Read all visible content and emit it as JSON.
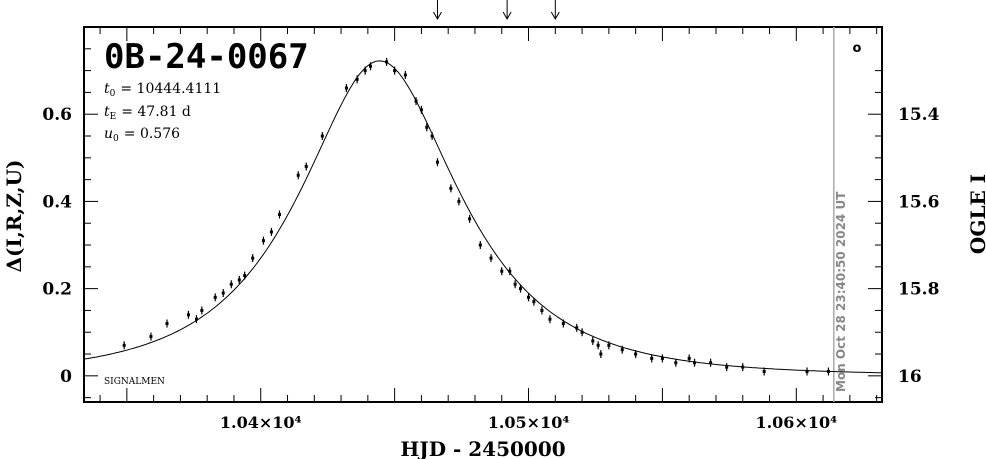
{
  "chart_data": {
    "type": "scatter",
    "event_name": "0B-24-0067",
    "params": {
      "t0_label": "t",
      "t0_sub": "0",
      "t0_value": "= 10444.4111",
      "tE_label": "t",
      "tE_sub": "E",
      "tE_value": "= 47.81 d",
      "u0_label": "u",
      "u0_sub": "0",
      "u0_value": "= 0.576"
    },
    "xlabel": "HJD - 2450000",
    "ylabel_left": "Δ(I,R,Z,U)",
    "ylabel_right": "OGLE I",
    "xlim": [
      10334,
      10632
    ],
    "ylim": [
      -0.06,
      0.8
    ],
    "x_ticks": [
      {
        "value": 10400,
        "label": "1.04×10⁴"
      },
      {
        "value": 10500,
        "label": "1.05×10⁴"
      },
      {
        "value": 10600,
        "label": "1.06×10⁴"
      }
    ],
    "y_ticks_left": [
      {
        "value": 0,
        "label": "0"
      },
      {
        "value": 0.2,
        "label": "0.2"
      },
      {
        "value": 0.4,
        "label": "0.4"
      },
      {
        "value": 0.6,
        "label": "0.6"
      }
    ],
    "y_ticks_right": [
      {
        "value": 15.4,
        "label": "15.4"
      },
      {
        "value": 15.6,
        "label": "15.6"
      },
      {
        "value": 15.8,
        "label": "15.8"
      },
      {
        "value": 16.0,
        "label": "16"
      }
    ],
    "timestamp_label": "Mon Oct 28 23:40:50 2024 UT",
    "timestamp_x": 10614,
    "signalmen_label": "SIGNALMEN",
    "marker_label": "o",
    "arrows_x": [
      10466,
      10492,
      10510
    ],
    "model_curve": {
      "t0": 10444.4111,
      "tE": 47.81,
      "u0": 0.576,
      "base": 0.0
    },
    "series": [
      {
        "points": [
          {
            "x": 10349,
            "y": 0.07
          },
          {
            "x": 10359,
            "y": 0.09
          },
          {
            "x": 10365,
            "y": 0.12
          },
          {
            "x": 10373,
            "y": 0.14
          },
          {
            "x": 10376,
            "y": 0.13
          },
          {
            "x": 10378,
            "y": 0.15
          },
          {
            "x": 10383,
            "y": 0.18
          },
          {
            "x": 10386,
            "y": 0.19
          },
          {
            "x": 10389,
            "y": 0.21
          },
          {
            "x": 10392,
            "y": 0.22
          },
          {
            "x": 10394,
            "y": 0.23
          },
          {
            "x": 10397,
            "y": 0.27
          },
          {
            "x": 10401,
            "y": 0.31
          },
          {
            "x": 10404,
            "y": 0.33
          },
          {
            "x": 10407,
            "y": 0.37
          },
          {
            "x": 10414,
            "y": 0.46
          },
          {
            "x": 10417,
            "y": 0.48
          },
          {
            "x": 10423,
            "y": 0.55
          },
          {
            "x": 10432,
            "y": 0.66
          },
          {
            "x": 10436,
            "y": 0.68
          },
          {
            "x": 10439,
            "y": 0.7
          },
          {
            "x": 10441,
            "y": 0.71
          },
          {
            "x": 10447,
            "y": 0.72
          },
          {
            "x": 10450,
            "y": 0.7
          },
          {
            "x": 10454,
            "y": 0.69
          },
          {
            "x": 10458,
            "y": 0.63
          },
          {
            "x": 10460,
            "y": 0.61
          },
          {
            "x": 10462,
            "y": 0.57
          },
          {
            "x": 10464,
            "y": 0.55
          },
          {
            "x": 10466,
            "y": 0.49
          },
          {
            "x": 10471,
            "y": 0.43
          },
          {
            "x": 10474,
            "y": 0.4
          },
          {
            "x": 10478,
            "y": 0.36
          },
          {
            "x": 10482,
            "y": 0.3
          },
          {
            "x": 10486,
            "y": 0.27
          },
          {
            "x": 10490,
            "y": 0.24
          },
          {
            "x": 10493,
            "y": 0.24
          },
          {
            "x": 10495,
            "y": 0.21
          },
          {
            "x": 10497,
            "y": 0.2
          },
          {
            "x": 10500,
            "y": 0.18
          },
          {
            "x": 10502,
            "y": 0.17
          },
          {
            "x": 10505,
            "y": 0.15
          },
          {
            "x": 10508,
            "y": 0.13
          },
          {
            "x": 10513,
            "y": 0.12
          },
          {
            "x": 10518,
            "y": 0.11
          },
          {
            "x": 10520,
            "y": 0.1
          },
          {
            "x": 10524,
            "y": 0.08
          },
          {
            "x": 10526,
            "y": 0.07
          },
          {
            "x": 10527,
            "y": 0.05
          },
          {
            "x": 10530,
            "y": 0.07
          },
          {
            "x": 10535,
            "y": 0.06
          },
          {
            "x": 10540,
            "y": 0.05
          },
          {
            "x": 10546,
            "y": 0.04
          },
          {
            "x": 10550,
            "y": 0.04
          },
          {
            "x": 10555,
            "y": 0.03
          },
          {
            "x": 10560,
            "y": 0.04
          },
          {
            "x": 10562,
            "y": 0.03
          },
          {
            "x": 10568,
            "y": 0.03
          },
          {
            "x": 10574,
            "y": 0.02
          },
          {
            "x": 10580,
            "y": 0.02
          },
          {
            "x": 10588,
            "y": 0.01
          },
          {
            "x": 10604,
            "y": 0.01
          },
          {
            "x": 10612,
            "y": 0.01
          }
        ]
      }
    ]
  }
}
